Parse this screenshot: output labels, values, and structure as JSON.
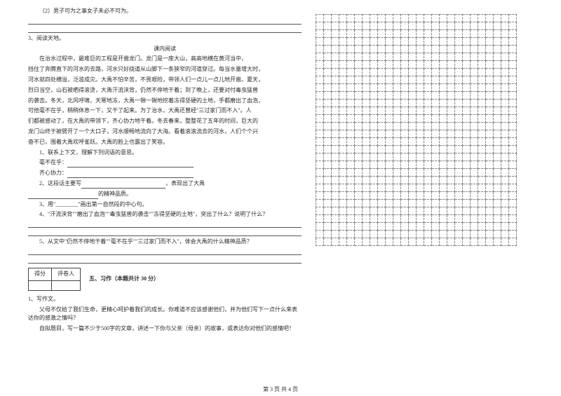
{
  "q2_sub2": "（2）男子可为之事女子未必不可为。",
  "q3_title": "3、阅读天地。",
  "q3_subtitle": "课内阅读",
  "passage": [
    "在治水过程中，最难巨的工程是开凿龙门。龙门是一座大山，高高地横在黄河当中，",
    "挡住了奔腾直下的河水的去路，河水只好绕道从山脚下一条狭窄的河道穿过。每当水量增大时，",
    "河水就四处横溢，泛滥成灾。大禹不怕辛苦，不畏艰险，带领人们一点儿一点儿地开凿。夏天，",
    "烈日当空，山石被晒得滚烫，大禹汗流浃背，仍然不停地干着；到了晚上，还要对付毒虫猛兽",
    "的袭击。冬天，北风呼啸，天寒地冻，大禹一锹一锹地挖着冻得坚硬的土地，手都磨出了血泡，",
    "可他毫不在乎，稍稍休息一下，又干了起来。为了治水，大禹还曾经\"三过家门而不入\"。人",
    "们都被感动了，在大禹的带领下，齐心协力地干着。冬去春来，整整花了五年的时间，巨大的",
    "龙门山终于被劈开了一个大口子，河水顺畅地流向了大海。看着滚滚流去的河水，人们个个兴",
    "奋不已，围着大禹欢呼雀跃。大禹的脸上也露出了笑容。"
  ],
  "q3_1": "1、联系上下文，理解下列词语的意思。",
  "q3_1a": "毫不在乎：",
  "q3_1b": "齐心协力：",
  "q3_2a": "2、这段话主要写",
  "q3_2b": "，表现出了大禹",
  "q3_2c": "的精神品质。",
  "q3_3": "3、用\"________\"画出第一自然段的中心句。",
  "q3_4": "4、\"汗流浃背\"\"磨出了血泡\"\"毒虫猛兽的袭击\"\"冻得坚硬的土地\"，突出了什么？说明了什么？",
  "q3_5": "5、从文中\"仍然不停地干着\"\"毫不在乎\"\"三过家门而不入\"，体会大禹的什么精神品质？",
  "score_h1": "得分",
  "score_h2": "评卷人",
  "section5": "五、习作（本题共计 30 分）",
  "q5_1": "1、写作文。",
  "q5_p1": "父母不仅给了我们生命，更精心呵护着我们的成长。你难道不应该感谢他们，并为他们写下一点什么来表达你的感激之情吗？",
  "q5_p2": "自拟题目，写一篇不少于500字的文章，讲述一下你与父亲（母亲）的故事，或表达你对他们的感情吧！",
  "footer": "第 3 页  共 4 页",
  "grid": {
    "rows": 30,
    "cols": 26
  }
}
